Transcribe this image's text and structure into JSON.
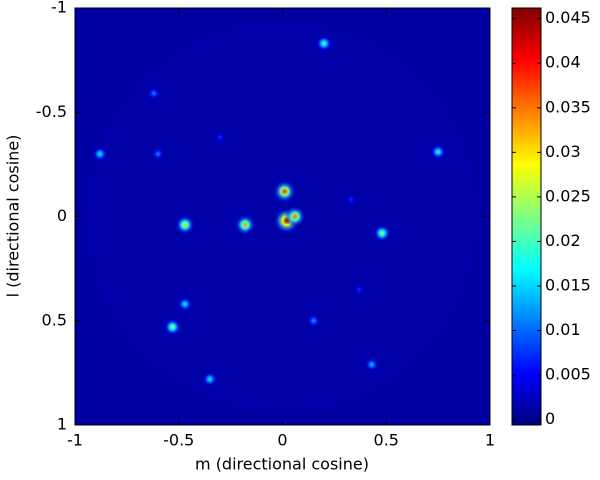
{
  "chart_data": {
    "type": "sky-image",
    "x_label": "m (directional cosine)",
    "y_label": "l (directional cosine)",
    "x": [
      0.2,
      -0.62,
      -0.88,
      -0.6,
      0.75,
      -0.47,
      -0.18,
      0.01,
      0.02,
      0.06,
      0.48,
      -0.47,
      -0.53,
      0.15,
      -0.35,
      0.43,
      -0.3,
      0.33,
      0.37
    ],
    "y": [
      -0.83,
      -0.59,
      -0.3,
      -0.3,
      -0.31,
      0.04,
      0.04,
      -0.12,
      0.02,
      0.0,
      0.08,
      0.42,
      0.53,
      0.5,
      0.78,
      0.71,
      -0.38,
      -0.08,
      0.35
    ],
    "values": [
      0.022,
      0.012,
      0.018,
      0.012,
      0.02,
      0.03,
      0.033,
      0.038,
      0.046,
      0.035,
      0.025,
      0.018,
      0.025,
      0.013,
      0.018,
      0.015,
      0.008,
      0.008,
      0.008
    ],
    "xlim": [
      -1,
      1
    ],
    "xticks": [
      -1,
      -0.5,
      0,
      0.5,
      1
    ],
    "ylim": [
      -1,
      1
    ],
    "yticks": [
      -1,
      -0.5,
      0,
      0.5,
      1
    ],
    "y_reversed": true,
    "clim": [
      -0.0006,
      0.0462
    ],
    "cticks": [
      0,
      0.005,
      0.01,
      0.015,
      0.02,
      0.025,
      0.03,
      0.035,
      0.04,
      0.045
    ],
    "colormap": "jet"
  }
}
